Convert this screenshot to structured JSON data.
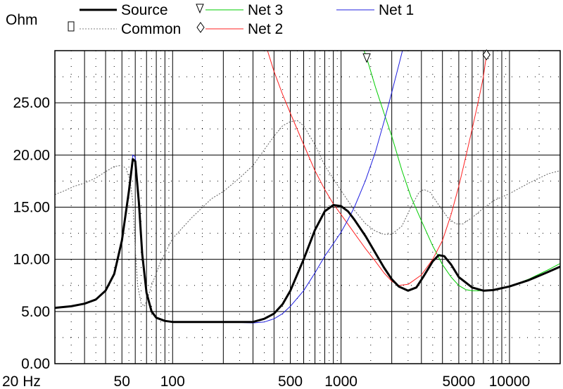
{
  "chart_data": {
    "type": "line",
    "ylabel": "Ohm",
    "x_scale": "log",
    "xlim": [
      20,
      20000
    ],
    "ylim": [
      0,
      30
    ],
    "grid": true,
    "legend_position": "top",
    "x_ticks": [
      {
        "value": 20,
        "label": "20 Hz"
      },
      {
        "value": 50,
        "label": "50"
      },
      {
        "value": 100,
        "label": "100"
      },
      {
        "value": 500,
        "label": "500"
      },
      {
        "value": 1000,
        "label": "1000"
      },
      {
        "value": 5000,
        "label": "5000"
      },
      {
        "value": 10000,
        "label": "10000"
      }
    ],
    "y_ticks": [
      {
        "value": 0,
        "label": "0.00"
      },
      {
        "value": 5,
        "label": "5.00"
      },
      {
        "value": 10,
        "label": "10.00"
      },
      {
        "value": 15,
        "label": "15.00"
      },
      {
        "value": 20,
        "label": "20.00"
      },
      {
        "value": 25,
        "label": "25.00"
      }
    ],
    "legend": [
      {
        "name": "Source",
        "color": "#000000",
        "marker": ""
      },
      {
        "name": "Common",
        "color": "#808080",
        "marker": "square"
      },
      {
        "name": "Net 3",
        "color": "#00cc00",
        "marker": "triangle"
      },
      {
        "name": "Net 2",
        "color": "#ff2020",
        "marker": "diamond"
      },
      {
        "name": "Net 1",
        "color": "#2020e0",
        "marker": ""
      }
    ],
    "markers": [
      {
        "series": "Net 3",
        "x": 1420,
        "y": 29.3,
        "shape": "triangle"
      },
      {
        "series": "Net 2",
        "x": 7300,
        "y": 29.6,
        "shape": "diamond"
      }
    ],
    "series": [
      {
        "name": "Source",
        "color": "#000000",
        "dash": "solid",
        "width": 3,
        "points": [
          [
            20,
            5.35
          ],
          [
            25,
            5.5
          ],
          [
            30,
            5.75
          ],
          [
            35,
            6.15
          ],
          [
            40,
            7.0
          ],
          [
            45,
            8.6
          ],
          [
            50,
            11.8
          ],
          [
            55,
            16.5
          ],
          [
            58,
            19.6
          ],
          [
            60,
            19.4
          ],
          [
            63,
            15.5
          ],
          [
            66,
            10.5
          ],
          [
            70,
            6.8
          ],
          [
            75,
            5.0
          ],
          [
            80,
            4.4
          ],
          [
            90,
            4.1
          ],
          [
            100,
            4.0
          ],
          [
            150,
            4.0
          ],
          [
            200,
            4.0
          ],
          [
            250,
            4.0
          ],
          [
            300,
            4.0
          ],
          [
            350,
            4.3
          ],
          [
            400,
            4.8
          ],
          [
            450,
            5.7
          ],
          [
            500,
            7.0
          ],
          [
            600,
            10.0
          ],
          [
            700,
            12.8
          ],
          [
            800,
            14.6
          ],
          [
            900,
            15.2
          ],
          [
            1000,
            15.1
          ],
          [
            1100,
            14.6
          ],
          [
            1200,
            13.8
          ],
          [
            1400,
            12.2
          ],
          [
            1600,
            10.6
          ],
          [
            1800,
            9.2
          ],
          [
            2000,
            8.1
          ],
          [
            2200,
            7.4
          ],
          [
            2500,
            7.0
          ],
          [
            2800,
            7.3
          ],
          [
            3100,
            8.4
          ],
          [
            3500,
            9.8
          ],
          [
            3800,
            10.4
          ],
          [
            4100,
            10.3
          ],
          [
            4500,
            9.5
          ],
          [
            5000,
            8.3
          ],
          [
            6000,
            7.3
          ],
          [
            7000,
            7.0
          ],
          [
            8000,
            7.05
          ],
          [
            10000,
            7.4
          ],
          [
            13000,
            8.0
          ],
          [
            17000,
            8.8
          ],
          [
            20000,
            9.3
          ]
        ]
      },
      {
        "name": "Common",
        "color": "#606060",
        "dash": "dotted",
        "width": 1,
        "points": [
          [
            20,
            16.2
          ],
          [
            23,
            16.6
          ],
          [
            26,
            17.0
          ],
          [
            30,
            17.3
          ],
          [
            35,
            17.8
          ],
          [
            40,
            18.4
          ],
          [
            45,
            18.9
          ],
          [
            50,
            19.0
          ],
          [
            53,
            18.7
          ],
          [
            56,
            17.5
          ],
          [
            58,
            15.5
          ],
          [
            60,
            11.0
          ],
          [
            62,
            7.5
          ],
          [
            65,
            5.8
          ],
          [
            68,
            5.5
          ],
          [
            70,
            6.0
          ],
          [
            75,
            7.5
          ],
          [
            85,
            9.8
          ],
          [
            100,
            12.0
          ],
          [
            130,
            14.0
          ],
          [
            170,
            15.8
          ],
          [
            200,
            16.5
          ],
          [
            250,
            17.8
          ],
          [
            300,
            19.0
          ],
          [
            350,
            20.5
          ],
          [
            400,
            21.8
          ],
          [
            450,
            22.8
          ],
          [
            500,
            23.2
          ],
          [
            550,
            23.3
          ],
          [
            600,
            22.8
          ],
          [
            700,
            21.0
          ],
          [
            800,
            19.0
          ],
          [
            1000,
            16.6
          ],
          [
            1200,
            14.7
          ],
          [
            1400,
            13.4
          ],
          [
            1600,
            12.7
          ],
          [
            1800,
            12.4
          ],
          [
            2000,
            12.4
          ],
          [
            2300,
            13.2
          ],
          [
            2600,
            15.0
          ],
          [
            2900,
            16.4
          ],
          [
            3100,
            16.7
          ],
          [
            3400,
            16.4
          ],
          [
            3800,
            15.2
          ],
          [
            4300,
            14.0
          ],
          [
            4800,
            13.4
          ],
          [
            5300,
            13.4
          ],
          [
            6000,
            14.0
          ],
          [
            7000,
            14.9
          ],
          [
            8000,
            15.6
          ],
          [
            10000,
            16.3
          ],
          [
            13000,
            17.3
          ],
          [
            17000,
            18.2
          ],
          [
            20000,
            18.5
          ]
        ]
      },
      {
        "name": "Net 3",
        "color": "#00cc00",
        "dash": "solid",
        "width": 1,
        "points": [
          [
            1300,
            31.0
          ],
          [
            1420,
            29.3
          ],
          [
            1600,
            26.5
          ],
          [
            1800,
            24.0
          ],
          [
            2000,
            21.8
          ],
          [
            2300,
            18.5
          ],
          [
            2600,
            16.0
          ],
          [
            3000,
            13.7
          ],
          [
            3500,
            11.3
          ],
          [
            4000,
            9.5
          ],
          [
            4500,
            8.3
          ],
          [
            5000,
            7.5
          ],
          [
            5500,
            7.1
          ],
          [
            6000,
            7.0
          ],
          [
            7000,
            7.0
          ],
          [
            8000,
            7.1
          ],
          [
            10000,
            7.4
          ],
          [
            13000,
            8.1
          ],
          [
            17000,
            9.0
          ],
          [
            20000,
            9.6
          ]
        ]
      },
      {
        "name": "Net 2",
        "color": "#ff2020",
        "dash": "solid",
        "width": 1,
        "points": [
          [
            350,
            31.0
          ],
          [
            400,
            28.0
          ],
          [
            450,
            25.8
          ],
          [
            500,
            24.0
          ],
          [
            600,
            21.0
          ],
          [
            700,
            18.5
          ],
          [
            800,
            16.7
          ],
          [
            900,
            15.3
          ],
          [
            1000,
            14.3
          ],
          [
            1200,
            12.5
          ],
          [
            1400,
            11.0
          ],
          [
            1600,
            9.8
          ],
          [
            1800,
            8.7
          ],
          [
            2000,
            7.9
          ],
          [
            2200,
            7.5
          ],
          [
            2500,
            7.6
          ],
          [
            3000,
            8.5
          ],
          [
            3500,
            10.0
          ],
          [
            4000,
            11.8
          ],
          [
            4500,
            14.3
          ],
          [
            5000,
            17.0
          ],
          [
            5500,
            19.8
          ],
          [
            6000,
            22.5
          ],
          [
            6500,
            25.0
          ],
          [
            7000,
            27.5
          ],
          [
            7300,
            29.6
          ],
          [
            7600,
            31.0
          ]
        ]
      },
      {
        "name": "Net 1",
        "color": "#2020e0",
        "dash": "solid",
        "width": 1,
        "points": [
          [
            20,
            5.35
          ],
          [
            25,
            5.5
          ],
          [
            30,
            5.75
          ],
          [
            35,
            6.15
          ],
          [
            40,
            7.0
          ],
          [
            45,
            8.6
          ],
          [
            50,
            11.8
          ],
          [
            55,
            16.5
          ],
          [
            58,
            20.0
          ],
          [
            60,
            19.8
          ],
          [
            63,
            15.5
          ],
          [
            66,
            10.5
          ],
          [
            70,
            6.8
          ],
          [
            75,
            5.0
          ],
          [
            80,
            4.4
          ],
          [
            90,
            4.1
          ],
          [
            100,
            4.0
          ],
          [
            150,
            4.0
          ],
          [
            200,
            4.0
          ],
          [
            250,
            3.95
          ],
          [
            300,
            3.9
          ],
          [
            350,
            4.0
          ],
          [
            400,
            4.3
          ],
          [
            450,
            4.8
          ],
          [
            500,
            5.5
          ],
          [
            600,
            7.0
          ],
          [
            700,
            8.7
          ],
          [
            800,
            10.3
          ],
          [
            900,
            11.5
          ],
          [
            1000,
            12.6
          ],
          [
            1100,
            13.8
          ],
          [
            1200,
            15.0
          ],
          [
            1400,
            17.6
          ],
          [
            1600,
            20.3
          ],
          [
            1800,
            23.2
          ],
          [
            2000,
            26.0
          ],
          [
            2200,
            28.6
          ],
          [
            2400,
            31.0
          ]
        ]
      }
    ]
  }
}
